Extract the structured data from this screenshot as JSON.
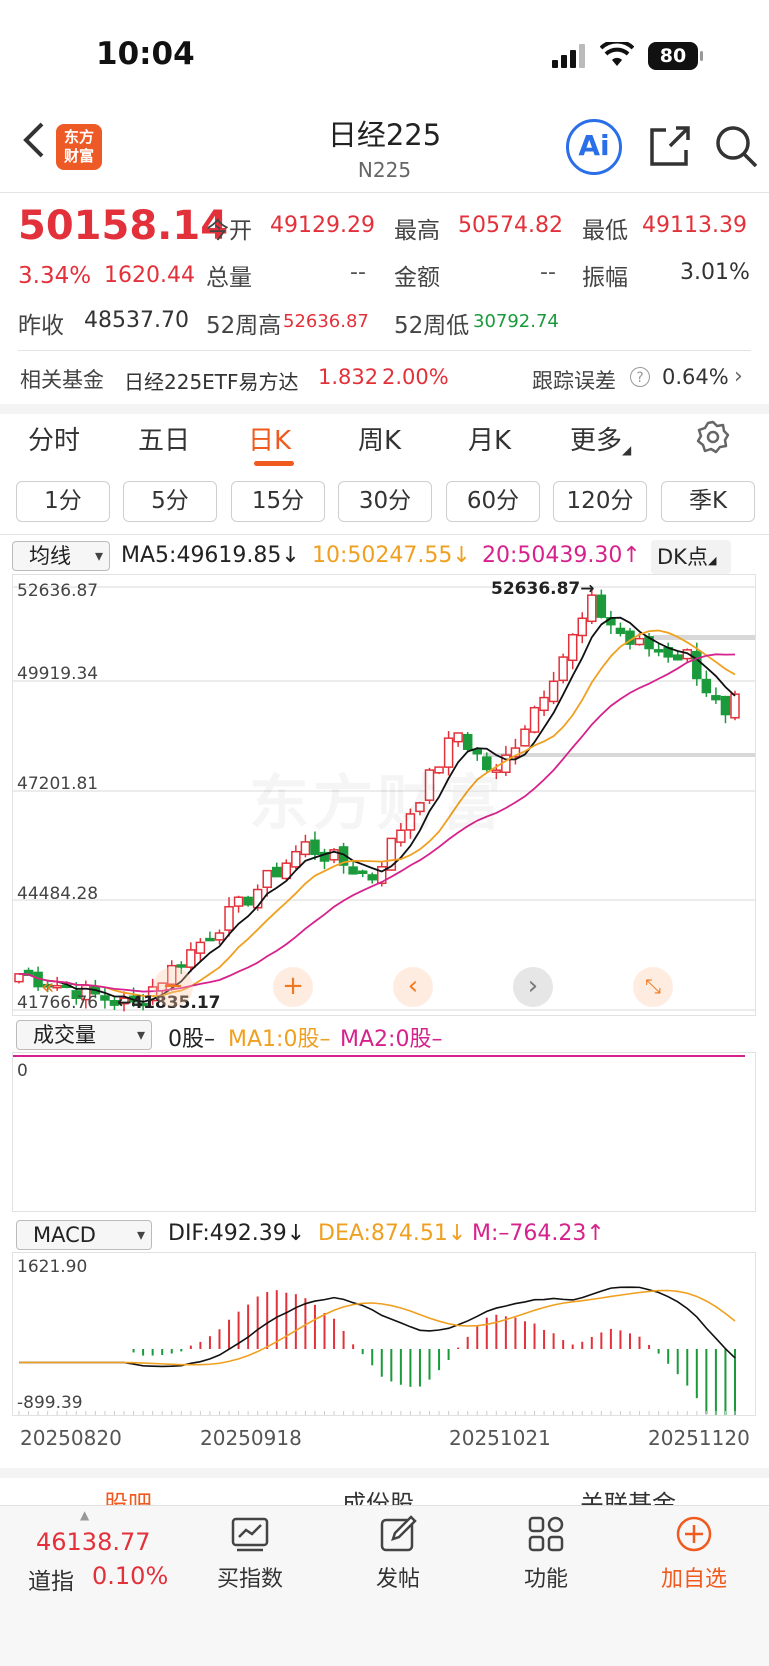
{
  "status_bar": {
    "time": "10:04",
    "battery": "80"
  },
  "header": {
    "title": "日经225",
    "subtitle": "N225",
    "logo_text": [
      "东方",
      "财富"
    ],
    "ai_label": "Ai"
  },
  "quote": {
    "price": "50158.14",
    "change_pct": "3.34%",
    "change_abs": "1620.44",
    "open_label": "今开",
    "open": "49129.29",
    "high_label": "最高",
    "high": "50574.82",
    "low_label": "最低",
    "low": "49113.39",
    "volume_label": "总量",
    "volume": "--",
    "amount_label": "金额",
    "amount": "--",
    "amplitude_label": "振幅",
    "amplitude": "3.01%",
    "prev_close_label": "昨收",
    "prev_close": "48537.70",
    "w52_high_label": "52周高",
    "w52_high": "52636.87",
    "w52_low_label": "52周低",
    "w52_low": "30792.74"
  },
  "fund": {
    "label": "相关基金",
    "name": "日经225ETF易方达",
    "price": "1.832",
    "pct": "2.00%",
    "tracking_label": "跟踪误差",
    "tracking_value": "0.64%"
  },
  "tabs": [
    "分时",
    "五日",
    "日K",
    "周K",
    "月K",
    "更多"
  ],
  "active_tab": "日K",
  "periods": [
    "1分",
    "5分",
    "15分",
    "30分",
    "60分",
    "120分",
    "季K"
  ],
  "kline": {
    "indicator_select": "均线",
    "ma5": "MA5:49619.85↓",
    "ma10": "10:50247.55↓",
    "ma20": "20:50439.30↑",
    "dk_label": "DK点",
    "y_labels": [
      "52636.87",
      "49919.34",
      "47201.81",
      "44484.28",
      "41766.76"
    ],
    "max_marker": "52636.87→",
    "min_marker": "←41835.17",
    "watermark": "东方财富"
  },
  "volume": {
    "select": "成交量",
    "value": "0股–",
    "ma1": "MA1:0股–",
    "ma2": "MA2:0股–",
    "zero": "0"
  },
  "macd": {
    "select": "MACD",
    "dif": "DIF:492.39↓",
    "dea": "DEA:874.51↓",
    "m": "M:–764.23↑",
    "top": "1621.90",
    "bottom": "-899.39",
    "dates": [
      "20250820",
      "20250918",
      "20251021",
      "20251120"
    ]
  },
  "sub_tabs": [
    "股吧",
    "成份股",
    "关联基金"
  ],
  "bottom": {
    "index_value": "46138.77",
    "index_name": "道指",
    "index_pct": "0.10%",
    "nav": [
      "买指数",
      "发帖",
      "功能",
      "加自选"
    ]
  },
  "colors": {
    "up": "#e2313a",
    "down": "#1a9a3b",
    "ma5": "#111111",
    "ma10": "#f0a020",
    "ma20": "#d6228c",
    "accent": "#f05a1e"
  }
}
